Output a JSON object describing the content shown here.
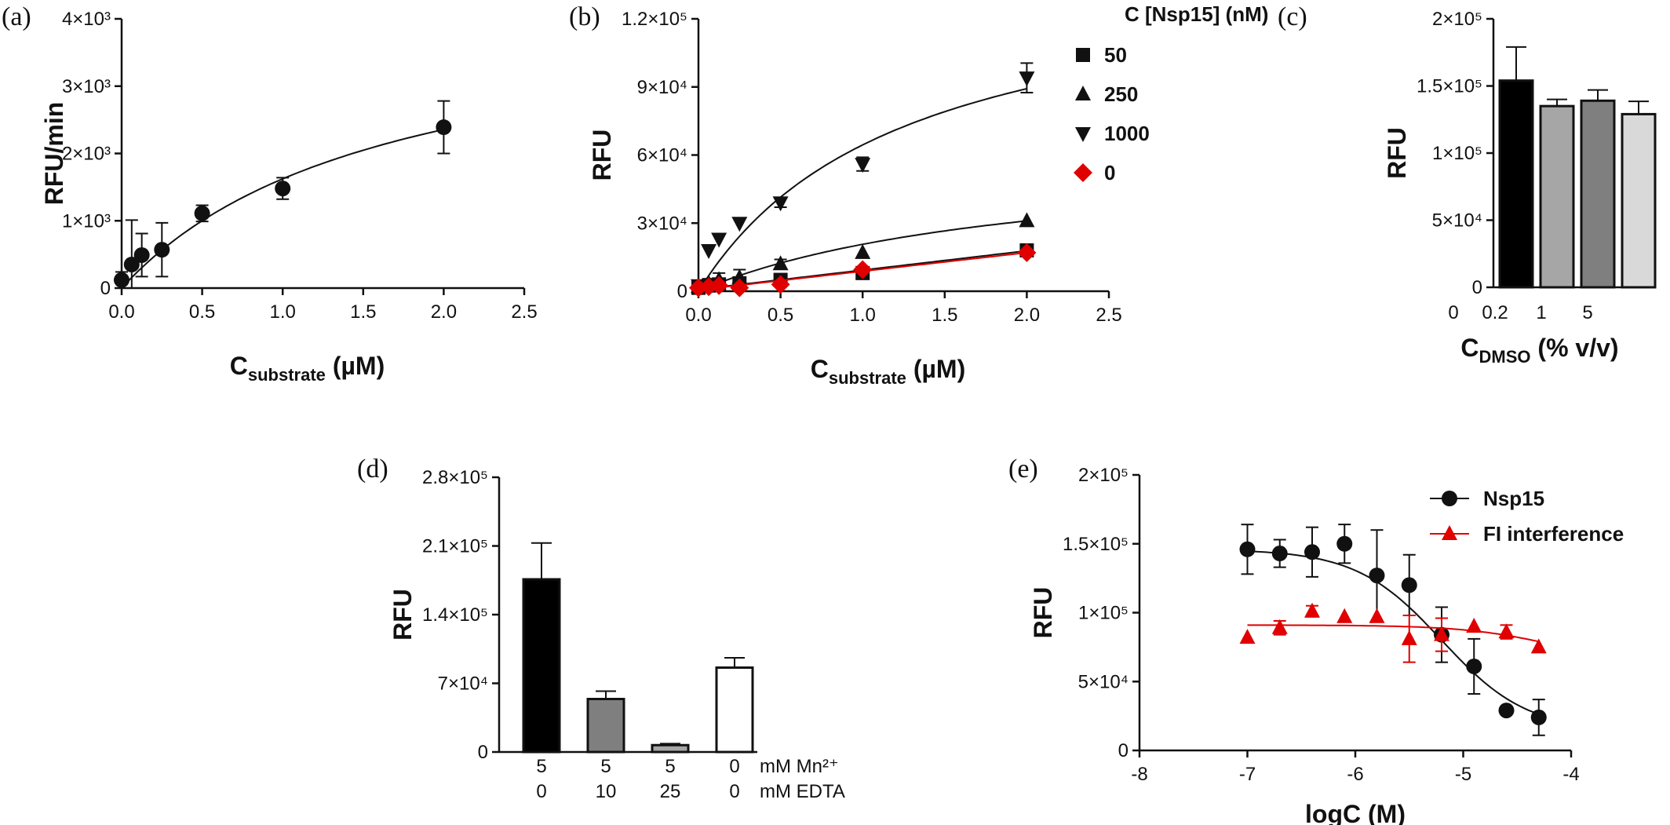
{
  "chart_data": [
    {
      "id": "a",
      "panel_label": "(a)",
      "type": "scatter",
      "xlabel": "C",
      "xlabel_sub": "substrate",
      "xlabel_unit": " (µM)",
      "ylabel": "RFU/min",
      "xlim": [
        0,
        2.5
      ],
      "ylim": [
        0,
        4000
      ],
      "xticks": [
        0,
        0.5,
        1.0,
        1.5,
        2.0,
        2.5
      ],
      "xtick_labels": [
        "0.0",
        "0.5",
        "1.0",
        "1.5",
        "2.0",
        "2.5"
      ],
      "yticks": [
        0,
        1000,
        2000,
        3000,
        4000
      ],
      "ytick_labels": [
        "0",
        "1×10³",
        "2×10³",
        "3×10³",
        "4×10³"
      ],
      "series": [
        {
          "marker": "circle",
          "color": "#111111",
          "x": [
            0.0,
            0.0625,
            0.125,
            0.25,
            0.5,
            1.0,
            2.0
          ],
          "y": [
            120,
            350,
            490,
            570,
            1110,
            1480,
            2390
          ],
          "err": [
            120,
            660,
            320,
            400,
            120,
            160,
            390
          ],
          "fit": {
            "kind": "mm",
            "vmax": 4300,
            "km": 1.65
          }
        }
      ]
    },
    {
      "id": "b",
      "panel_label": "(b)",
      "type": "scatter",
      "xlabel": "C",
      "xlabel_sub": "substrate",
      "xlabel_unit": " (µM)",
      "ylabel": "RFU",
      "xlim": [
        0,
        2.5
      ],
      "ylim": [
        0,
        120000
      ],
      "xticks": [
        0,
        0.5,
        1.0,
        1.5,
        2.0,
        2.5
      ],
      "xtick_labels": [
        "0.0",
        "0.5",
        "1.0",
        "1.5",
        "2.0",
        "2.5"
      ],
      "yticks": [
        0,
        30000,
        60000,
        90000,
        120000
      ],
      "ytick_labels": [
        "0",
        "3×10⁴",
        "6×10⁴",
        "9×10⁴",
        "1.2×10⁵"
      ],
      "legend_title": "C [Nsp15] (nM)",
      "legend_position": "right",
      "series": [
        {
          "name": "50",
          "marker": "square",
          "color": "#111111",
          "x": [
            0.0,
            0.0625,
            0.125,
            0.25,
            0.5,
            1.0,
            2.0
          ],
          "y": [
            1500,
            2500,
            3000,
            3500,
            5000,
            8000,
            18000
          ],
          "err": [
            0,
            0,
            0,
            0,
            0,
            0,
            0
          ],
          "fit": {
            "kind": "line",
            "slope": 8500,
            "intercept": 800
          }
        },
        {
          "name": "250",
          "marker": "triangle-up",
          "color": "#111111",
          "x": [
            0.0,
            0.0625,
            0.125,
            0.25,
            0.5,
            1.0,
            2.0
          ],
          "y": [
            2000,
            3500,
            5000,
            6000,
            12000,
            17000,
            31000
          ],
          "err": [
            1500,
            2000,
            3000,
            3500,
            2000,
            0,
            0
          ],
          "fit": {
            "kind": "mm",
            "vmax": 62000,
            "km": 2.0
          }
        },
        {
          "name": "1000",
          "marker": "triangle-down",
          "color": "#111111",
          "x": [
            0.0,
            0.0625,
            0.125,
            0.25,
            0.5,
            1.0,
            2.0
          ],
          "y": [
            2500,
            18000,
            23000,
            30000,
            39000,
            56000,
            94000
          ],
          "err": [
            0,
            0,
            0,
            0,
            2000,
            3000,
            6500
          ],
          "fit": {
            "kind": "mm",
            "vmax": 145000,
            "km": 1.25
          }
        },
        {
          "name": "0",
          "marker": "diamond",
          "color": "#e00000",
          "x": [
            0.0,
            0.0625,
            0.125,
            0.25,
            0.5,
            1.0,
            2.0
          ],
          "y": [
            1500,
            2000,
            2500,
            1500,
            3000,
            9500,
            17000
          ],
          "err": [
            0,
            0,
            0,
            0,
            0,
            0,
            0
          ],
          "fit": {
            "kind": "line",
            "slope": 8200,
            "intercept": 600
          }
        }
      ]
    },
    {
      "id": "c",
      "panel_label": "(c)",
      "type": "bar",
      "xlabel": "C",
      "xlabel_sub": "DMSO",
      "xlabel_unit": " (% v/v)",
      "ylabel": "RFU",
      "ylim": [
        0,
        200000
      ],
      "yticks": [
        0,
        50000,
        100000,
        150000,
        200000
      ],
      "ytick_labels": [
        "0",
        "5×10⁴",
        "1×10⁵",
        "1.5×10⁵",
        "2×10⁵"
      ],
      "categories": [
        "0",
        "0.2",
        "1",
        "5"
      ],
      "values": [
        154000,
        135000,
        139000,
        129000
      ],
      "err": [
        25000,
        5000,
        8000,
        9500
      ],
      "bar_colors": [
        "#000000",
        "#a6a6a6",
        "#7f7f7f",
        "#d9d9d9"
      ]
    },
    {
      "id": "d",
      "panel_label": "(d)",
      "type": "bar",
      "ylabel": "RFU",
      "ylim": [
        0,
        280000
      ],
      "yticks": [
        0,
        70000,
        140000,
        210000,
        280000
      ],
      "ytick_labels": [
        "0",
        "7×10⁴",
        "1.4×10⁵",
        "2.1×10⁵",
        "2.8×10⁵"
      ],
      "categories": [
        "5",
        "5",
        "5",
        "0"
      ],
      "categories2": [
        "0",
        "10",
        "25",
        "0"
      ],
      "row_label_1": "mM Mn²⁺",
      "row_label_2": "mM EDTA",
      "values": [
        176000,
        54000,
        7000,
        86000
      ],
      "err": [
        37000,
        8000,
        1500,
        10000
      ],
      "bar_colors": [
        "#000000",
        "#7f7f7f",
        "#a6a6a6",
        "#ffffff"
      ]
    },
    {
      "id": "e",
      "panel_label": "(e)",
      "type": "scatter",
      "xlabel": "logC (M)",
      "ylabel": "RFU",
      "xlim": [
        -8,
        -4
      ],
      "ylim": [
        0,
        200000
      ],
      "xticks": [
        -8,
        -7,
        -6,
        -5,
        -4
      ],
      "xtick_labels": [
        "-8",
        "-7",
        "-6",
        "-5",
        "-4"
      ],
      "yticks": [
        0,
        50000,
        100000,
        150000,
        200000
      ],
      "ytick_labels": [
        "0",
        "5×10⁴",
        "1×10⁵",
        "1.5×10⁵",
        "2×10⁵"
      ],
      "legend_position": "top-right",
      "series": [
        {
          "name": "Nsp15",
          "marker": "circle",
          "color": "#111111",
          "x": [
            -7.0,
            -6.7,
            -6.4,
            -6.1,
            -5.8,
            -5.5,
            -5.2,
            -4.9,
            -4.6,
            -4.3
          ],
          "y": [
            146000,
            143000,
            144000,
            150000,
            127000,
            120000,
            84000,
            61000,
            29000,
            24000
          ],
          "err": [
            18000,
            10000,
            18000,
            14000,
            33000,
            22000,
            20000,
            20000,
            0,
            13000
          ],
          "fit": {
            "kind": "sigmoid",
            "top": 146000,
            "bottom": 14000,
            "logic50": -5.2,
            "hill": 1.1
          }
        },
        {
          "name": "FI interference",
          "marker": "triangle-up",
          "color": "#e00000",
          "x": [
            -7.0,
            -6.7,
            -6.4,
            -6.1,
            -5.8,
            -5.5,
            -5.2,
            -4.9,
            -4.6,
            -4.3
          ],
          "y": [
            82000,
            89000,
            101000,
            97000,
            97000,
            81000,
            84000,
            90000,
            86000,
            75000
          ],
          "err": [
            0,
            5000,
            4000,
            0,
            0,
            17000,
            12000,
            0,
            5000,
            0
          ],
          "fit": {
            "kind": "sigmoid",
            "top": 91000,
            "bottom": 60000,
            "logic50": -4.1,
            "hill": 1.0
          }
        }
      ]
    }
  ]
}
